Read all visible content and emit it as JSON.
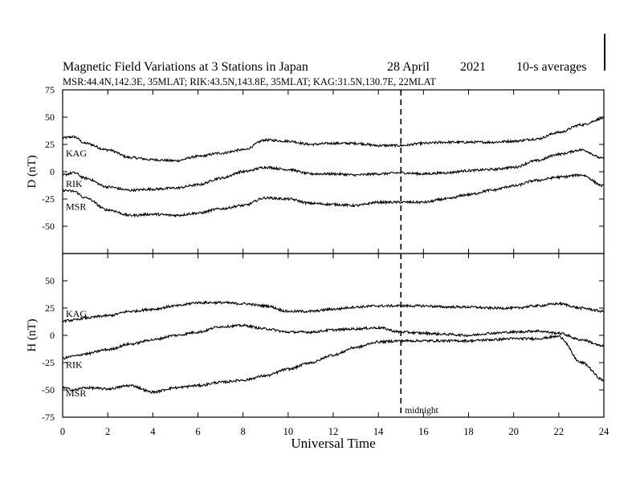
{
  "chart_data": {
    "type": "line",
    "title": "Magnetic Field Variations at 3 Stations in Japan",
    "date": "28  April",
    "year": "2021",
    "resolution": "10-s averages",
    "stations_line": "MSR:44.4N,142.3E, 35MLAT;  RIK:43.5N,143.8E, 35MLAT;  KAG:31.5N,130.7E, 22MLAT",
    "xlabel": "Universal Time",
    "xlim": [
      0,
      24
    ],
    "xticks": [
      0,
      2,
      4,
      6,
      8,
      10,
      12,
      14,
      16,
      18,
      20,
      22,
      24
    ],
    "midnight": {
      "x": 15,
      "label": "midnight"
    },
    "grid": false,
    "panels": [
      {
        "ylabel": "D (nT)",
        "ylim": [
          -75,
          75
        ],
        "yticks": [
          75,
          50,
          25,
          0,
          -25,
          -50
        ],
        "series": [
          {
            "name": "KAG",
            "label_y": 17,
            "x": [
              0,
              0.5,
              1,
              2,
              3,
              4,
              5,
              6,
              7,
              8,
              9,
              10,
              11,
              12,
              13,
              14,
              15,
              16,
              17,
              18,
              19,
              20,
              21,
              22,
              23,
              24
            ],
            "y": [
              31,
              32,
              26,
              20,
              13,
              11,
              10,
              14,
              17,
              20,
              29,
              28,
              25,
              26,
              26,
              24,
              24,
              26,
              27,
              27,
              27,
              28,
              30,
              36,
              43,
              49
            ]
          },
          {
            "name": "RIK",
            "label_y": -11,
            "x": [
              0,
              0.5,
              1,
              2,
              3,
              4,
              5,
              6,
              7,
              8,
              9,
              10,
              11,
              12,
              13,
              14,
              15,
              16,
              17,
              18,
              19,
              20,
              21,
              22,
              23,
              24
            ],
            "y": [
              -3,
              -1,
              -6,
              -14,
              -17,
              -16,
              -15,
              -12,
              -6,
              0,
              4,
              2,
              -2,
              -2,
              -3,
              -2,
              -1,
              -2,
              -1,
              1,
              2,
              4,
              10,
              16,
              20,
              12
            ]
          },
          {
            "name": "MSR",
            "label_y": -32,
            "x": [
              0,
              0.5,
              1,
              2,
              3,
              4,
              5,
              6,
              7,
              8,
              9,
              10,
              11,
              12,
              13,
              14,
              15,
              16,
              17,
              18,
              19,
              20,
              21,
              22,
              23,
              24
            ],
            "y": [
              -17,
              -18,
              -24,
              -35,
              -40,
              -39,
              -40,
              -38,
              -34,
              -31,
              -24,
              -25,
              -29,
              -30,
              -31,
              -28,
              -28,
              -28,
              -25,
              -21,
              -17,
              -13,
              -8,
              -5,
              -3,
              -13
            ]
          }
        ]
      },
      {
        "ylabel": "H (nT)",
        "ylim": [
          -75,
          75
        ],
        "yticks": [
          50,
          25,
          0,
          -25,
          -50,
          -75
        ],
        "series": [
          {
            "name": "KAG",
            "label_y": 20,
            "x": [
              0,
              0.5,
              1,
              2,
              3,
              4,
              5,
              6,
              7,
              8,
              9,
              10,
              11,
              12,
              13,
              14,
              15,
              16,
              17,
              18,
              19,
              20,
              21,
              22,
              23,
              24
            ],
            "y": [
              13,
              14,
              16,
              18,
              22,
              24,
              27,
              30,
              30,
              29,
              27,
              22,
              22,
              24,
              26,
              27,
              27,
              27,
              26,
              26,
              25,
              25,
              27,
              29,
              25,
              22
            ]
          },
          {
            "name": "RIK",
            "label_y": -27,
            "x": [
              0,
              0.5,
              1,
              2,
              3,
              4,
              5,
              6,
              7,
              8,
              9,
              10,
              11,
              12,
              13,
              14,
              15,
              16,
              17,
              18,
              19,
              20,
              21,
              22,
              23,
              24
            ],
            "y": [
              -21,
              -19,
              -17,
              -13,
              -8,
              -4,
              0,
              3,
              8,
              9,
              6,
              3,
              3,
              5,
              6,
              7,
              3,
              2,
              1,
              0,
              2,
              3,
              4,
              2,
              -4,
              -10
            ]
          },
          {
            "name": "MSR",
            "label_y": -53,
            "x": [
              0,
              0.5,
              1,
              2,
              3,
              4,
              5,
              6,
              7,
              8,
              9,
              10,
              11,
              12,
              13,
              14,
              15,
              16,
              17,
              18,
              19,
              20,
              21,
              22,
              23,
              24
            ],
            "y": [
              -48,
              -50,
              -48,
              -49,
              -46,
              -52,
              -48,
              -46,
              -43,
              -41,
              -37,
              -31,
              -25,
              -18,
              -11,
              -6,
              -5,
              -5,
              -5,
              -5,
              -4,
              -3,
              -3,
              -1,
              -25,
              -41
            ]
          }
        ]
      }
    ]
  }
}
